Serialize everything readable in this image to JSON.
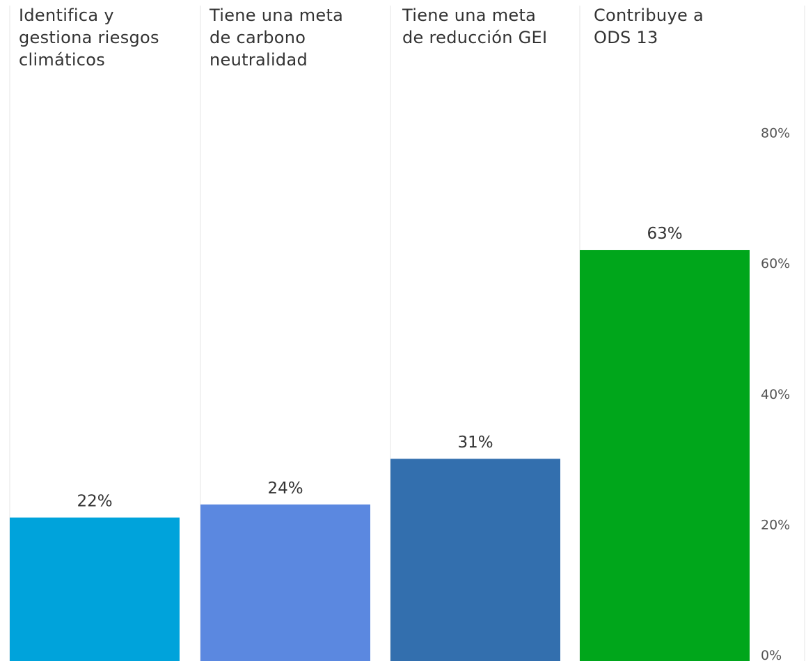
{
  "chart_data": {
    "type": "bar",
    "categories": [
      "Identifica y gestiona riesgos climáticos",
      "Tiene una meta de carbono neutralidad",
      "Tiene una meta de reducción GEI",
      "Contribuye a ODS 13"
    ],
    "values": [
      22,
      24,
      31,
      63
    ],
    "value_labels": [
      "22%",
      "24%",
      "31%",
      "63%"
    ],
    "colors": [
      "#00a3db",
      "#5b88e0",
      "#336fae",
      "#00a61b"
    ],
    "ylim": [
      0,
      85
    ],
    "y_ticks": [
      0,
      20,
      40,
      60,
      80
    ],
    "y_tick_labels": [
      "0%",
      "20%",
      "40%",
      "60%",
      "80%"
    ],
    "y_axis_position": "right",
    "grid": false,
    "panel_separators": true
  },
  "labels": {
    "cat0": [
      "Identifica y",
      "gestiona riesgos",
      "climáticos"
    ],
    "cat1": [
      "Tiene una meta",
      "de carbono",
      "neutralidad"
    ],
    "cat2": [
      "Tiene una meta",
      "de reducción GEI"
    ],
    "cat3": [
      "Contribuye a",
      "ODS 13"
    ]
  }
}
